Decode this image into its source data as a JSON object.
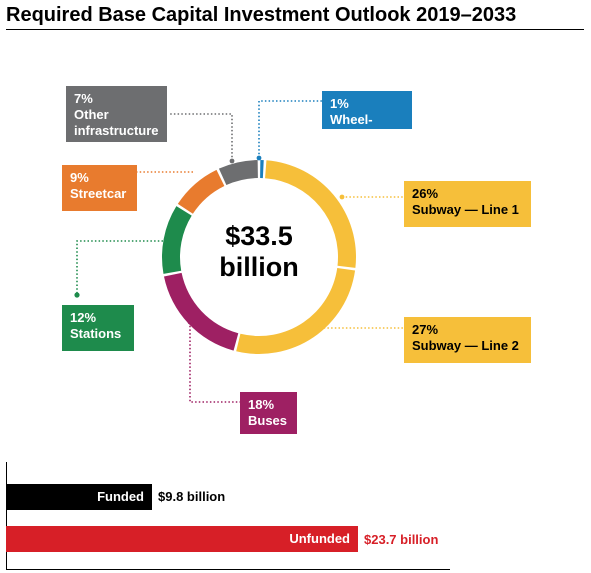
{
  "chart_data": {
    "type": "pie",
    "title": "Required Base Capital Investment Outlook 2019–2033",
    "center_text": [
      "$33.5",
      "billion"
    ],
    "slices": [
      {
        "label": "Wheel-Trans",
        "percent": 1,
        "percent_label": "1%",
        "color": "#1a7fbd"
      },
      {
        "label": "Subway — Line 1",
        "percent": 26,
        "percent_label": "26%",
        "color": "#f6bf3a"
      },
      {
        "label": "Subway — Line 2",
        "percent": 27,
        "percent_label": "27%",
        "color": "#f6bf3a"
      },
      {
        "label": "Buses",
        "percent": 18,
        "percent_label": "18%",
        "color": "#9e2063"
      },
      {
        "label": "Stations",
        "percent": 12,
        "percent_label": "12%",
        "color": "#1e8b4c"
      },
      {
        "label": "Streetcar",
        "percent": 9,
        "percent_label": "9%",
        "color": "#e87b2e"
      },
      {
        "label": "Other infrastructure",
        "label_lines": [
          "Other",
          "infrastructure"
        ],
        "percent": 7,
        "percent_label": "7%",
        "color": "#6d6e70"
      }
    ],
    "funding": [
      {
        "label": "Funded",
        "value": 9.8,
        "value_label": "$9.8 billion",
        "color": "#000000"
      },
      {
        "label": "Unfunded",
        "value": 23.7,
        "value_label": "$23.7 billion",
        "color": "#d71f27"
      }
    ]
  }
}
